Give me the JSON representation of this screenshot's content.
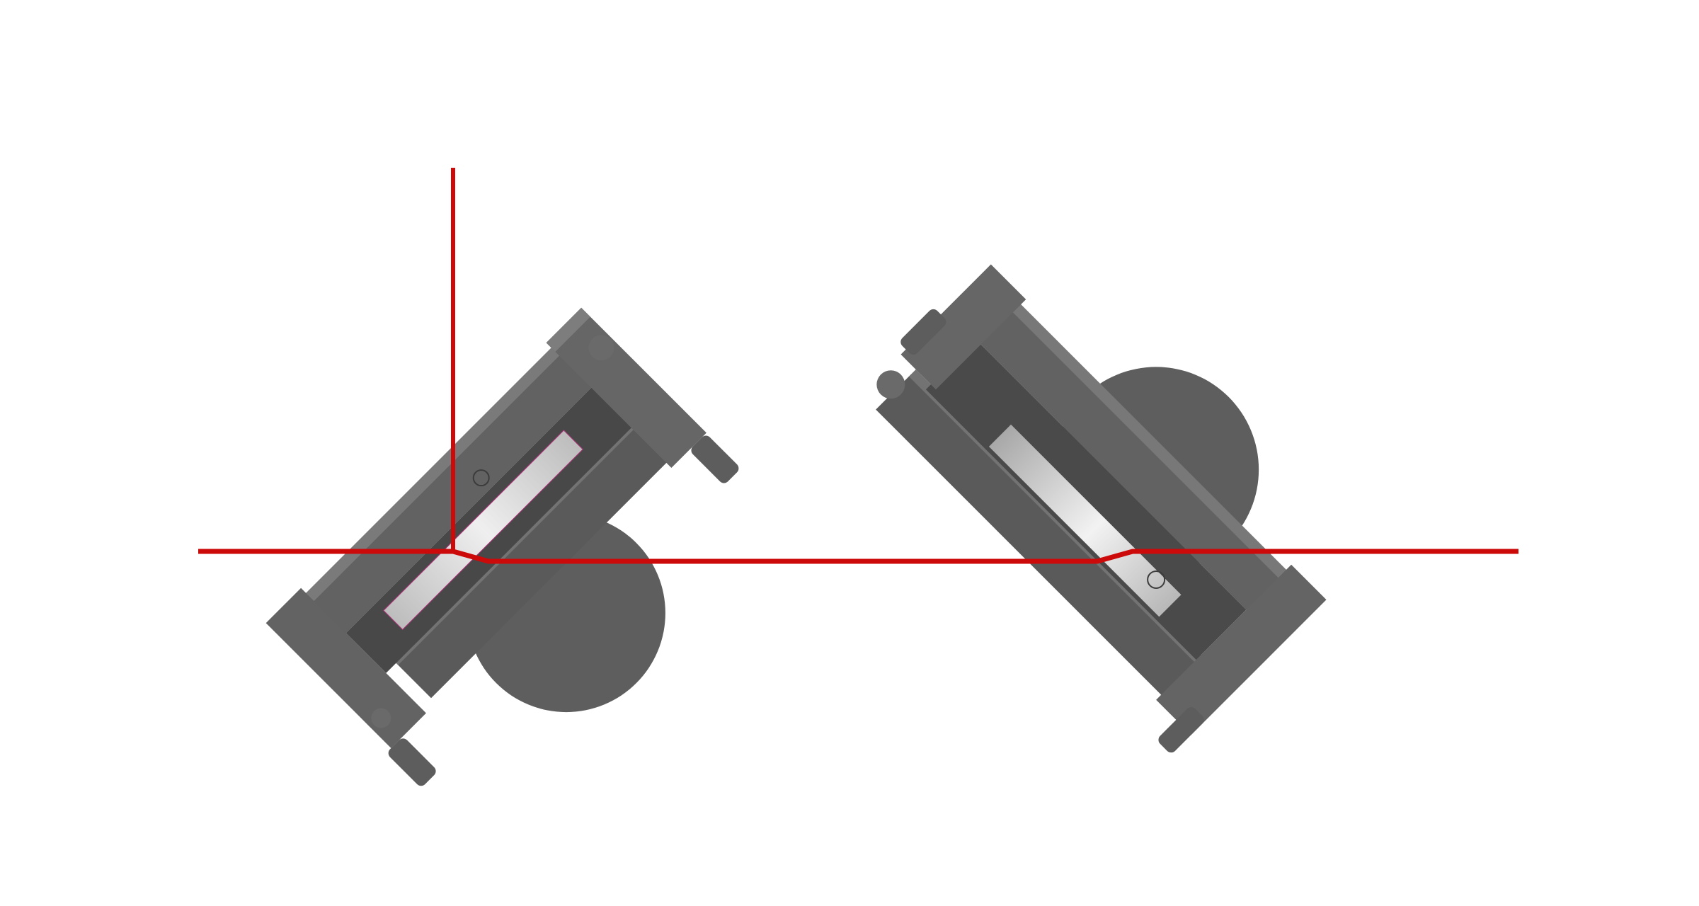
{
  "scene": {
    "background_color": "#ffffff",
    "ray_color": "#cc0a0a",
    "part_color": "#5f5f5f",
    "part_highlight_color": "#7a7a7a",
    "part_shadow_color": "#3f3f3f",
    "disc_color": "#5e5e5e",
    "window_color": "#cfcfcf",
    "window_edge_color": "#b0307a"
  },
  "objects": [
    {
      "name": "left-optical-mount",
      "icon": "rotated-mount-assembly"
    },
    {
      "name": "right-optical-mount",
      "icon": "rotated-mount-assembly"
    }
  ],
  "rays": [
    {
      "name": "vertical-reference-line"
    },
    {
      "name": "horizontal-beam-path"
    }
  ]
}
